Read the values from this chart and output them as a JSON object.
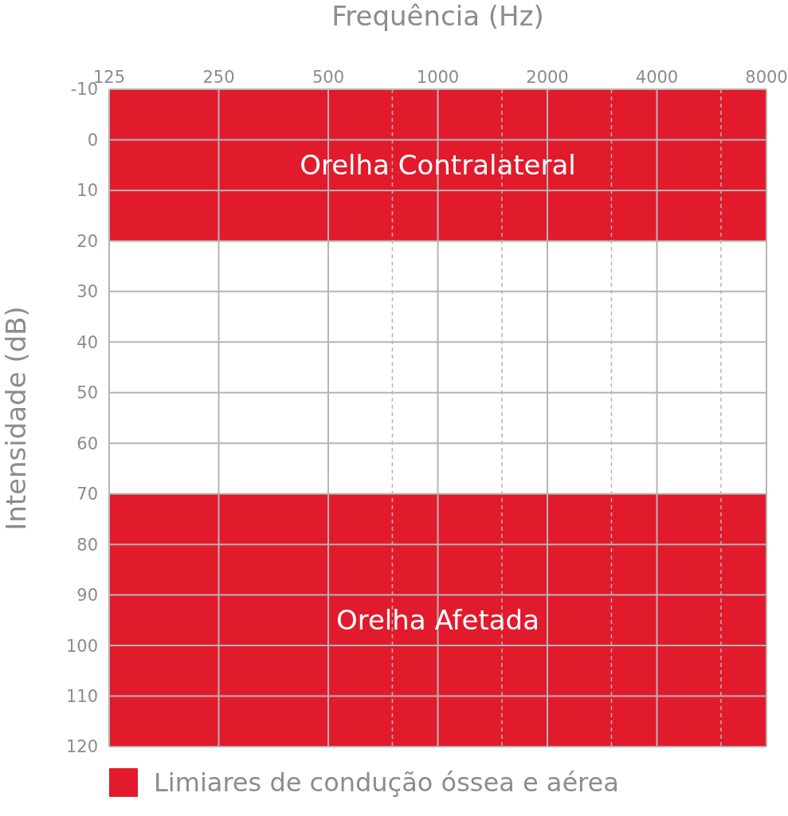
{
  "chart_data": {
    "type": "line",
    "xlabel": "Frequência (Hz)",
    "ylabel": "Intensidade (dB)",
    "annotations": [
      "Limiares de condução óssea e aérea"
    ],
    "log": "x",
    "grid": true,
    "xlim": [
      125,
      8000
    ],
    "xticks": [
      125,
      250,
      500,
      {
        "value": 750,
        "label": null
      },
      1000,
      {
        "value": 1500,
        "label": null
      },
      2000,
      {
        "value": 3000,
        "label": null
      },
      4000,
      {
        "value": 6000,
        "label": null
      },
      8000
    ],
    "ylim": [
      120,
      -10
    ],
    "yticks": [
      -10,
      0,
      10,
      20,
      30,
      40,
      50,
      60,
      70,
      80,
      90,
      100,
      110,
      120
    ],
    "bands": [
      {
        "axis": "y",
        "from": -10,
        "to": 20,
        "label": "Orelha Contralateral",
        "color": "#e11b2c"
      },
      {
        "axis": "y",
        "from": 70,
        "to": 120,
        "label": "Orelha Afetada",
        "color": "#e11b2c"
      }
    ]
  }
}
